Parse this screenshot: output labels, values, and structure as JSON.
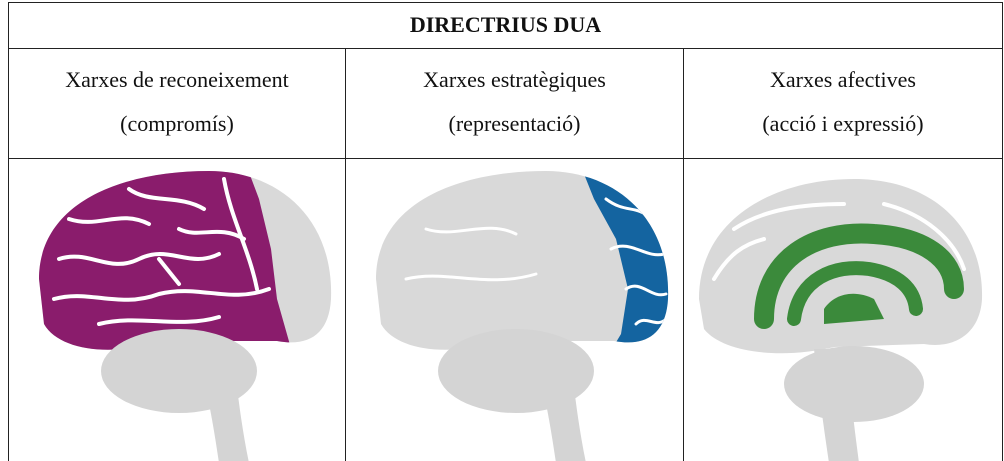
{
  "table": {
    "title": "DIRECTRIUS DUA",
    "columns": [
      {
        "title": "Xarxes de reconeixement",
        "subtitle": "(compromís)"
      },
      {
        "title": "Xarxes estratègiques",
        "subtitle": "(representació)"
      },
      {
        "title": "Xarxes afectives",
        "subtitle": "(acció i expressió)"
      }
    ]
  }
}
